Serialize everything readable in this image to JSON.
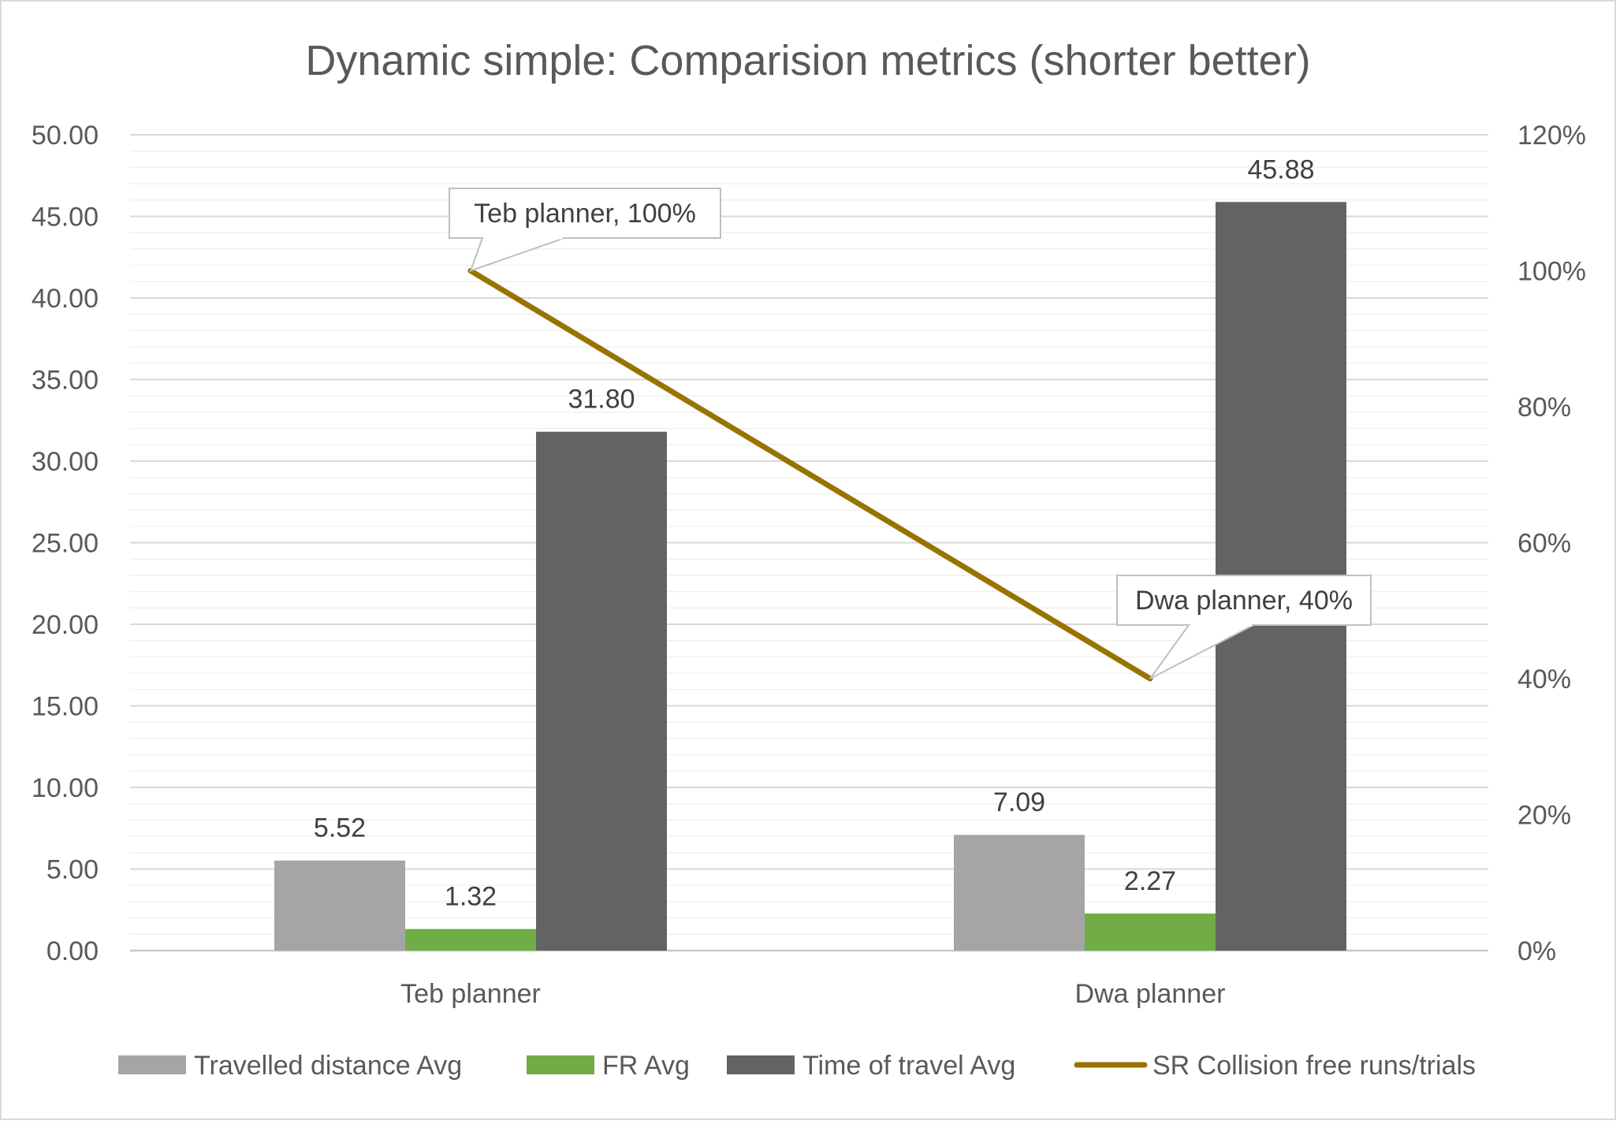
{
  "chart_data": {
    "type": "bar",
    "title": "Dynamic simple: Comparision metrics (shorter better)",
    "categories": [
      "Teb planner",
      "Dwa planner"
    ],
    "bar_series": [
      {
        "name": "Travelled distance Avg",
        "values": [
          5.52,
          7.09
        ],
        "labels": [
          "5.52",
          "7.09"
        ],
        "color": "#a5a5a5"
      },
      {
        "name": "FR Avg",
        "values": [
          1.32,
          2.27
        ],
        "labels": [
          "1.32",
          "2.27"
        ],
        "color": "#70ad47"
      },
      {
        "name": "Time of travel Avg",
        "values": [
          31.8,
          45.88
        ],
        "labels": [
          "31.80",
          "45.88"
        ],
        "color": "#636363"
      }
    ],
    "line_series": {
      "name": "SR Collision free runs/trials",
      "values": [
        1.0,
        0.4
      ],
      "labels": [
        "Teb planner, 100%",
        "Dwa planner, 40%"
      ],
      "color": "#997300",
      "axis": "secondary"
    },
    "ylim": [
      0,
      50
    ],
    "y2lim": [
      0,
      1.2
    ],
    "y_ticks": [
      "0.00",
      "5.00",
      "10.00",
      "15.00",
      "20.00",
      "25.00",
      "30.00",
      "35.00",
      "40.00",
      "45.00",
      "50.00"
    ],
    "y2_ticks": [
      "0%",
      "20%",
      "40%",
      "60%",
      "80%",
      "100%",
      "120%"
    ],
    "xlabel": "",
    "ylabel": "",
    "grid": true,
    "legend_position": "bottom"
  }
}
